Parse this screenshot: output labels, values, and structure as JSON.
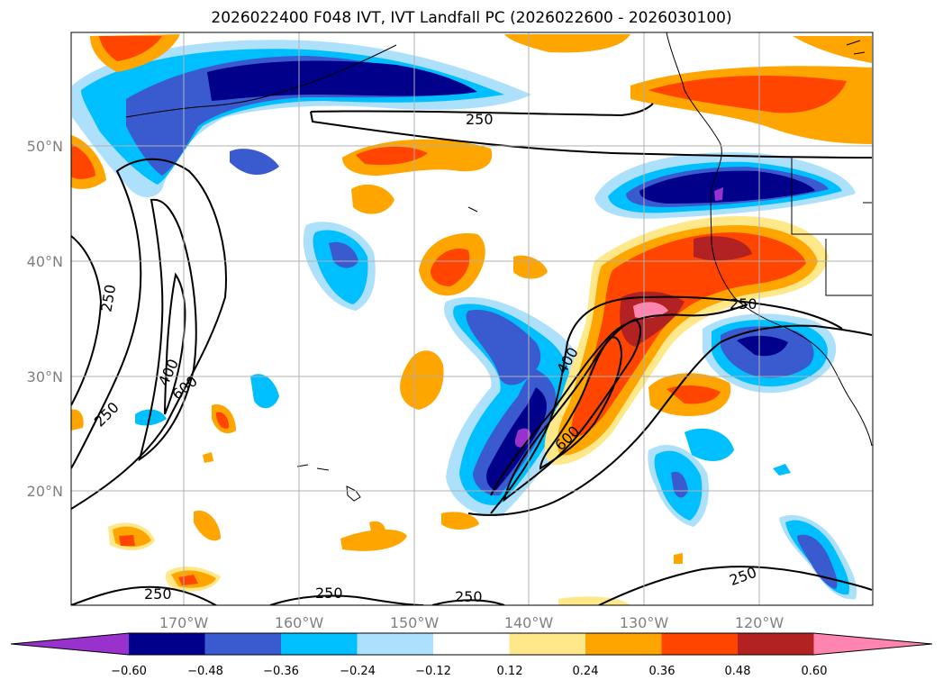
{
  "title": "2026022400 F048 IVT, IVT Landfall PC (2026022600 - 2026030100)",
  "lon_labels": [
    "170°W",
    "160°W",
    "150°W",
    "140°W",
    "130°W",
    "120°W"
  ],
  "lat_labels": [
    "50°N",
    "40°N",
    "30°N",
    "20°N"
  ],
  "colorbar": {
    "ticks": [
      "−0.60",
      "−0.48",
      "−0.36",
      "−0.24",
      "−0.12",
      "0.12",
      "0.24",
      "0.36",
      "0.48",
      "0.60"
    ],
    "colors": [
      "#9932cc",
      "#00008b",
      "#3a5bd0",
      "#00bfff",
      "#ade0fa",
      "#ffffff",
      "#ffe88a",
      "#ffa500",
      "#ff4500",
      "#b22222",
      "#ff85b0"
    ]
  },
  "contour_labels": [
    "250",
    "250",
    "250",
    "250",
    "250",
    "250",
    "250",
    "400",
    "600",
    "400",
    "600",
    "250"
  ]
}
